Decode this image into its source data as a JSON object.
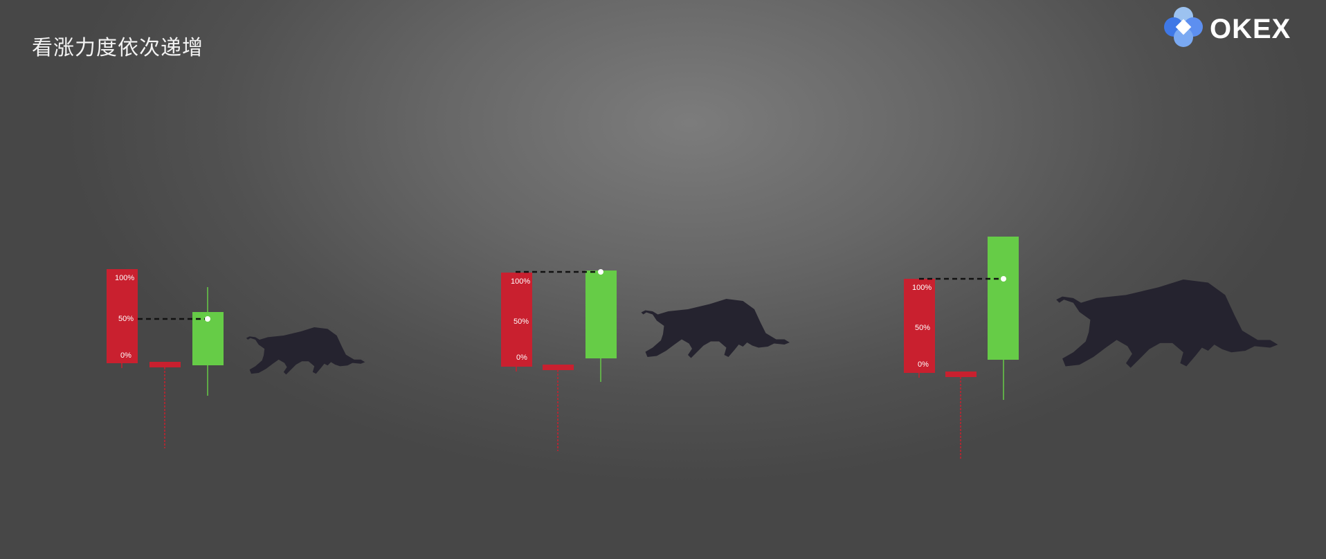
{
  "title": "看涨力度依次递增",
  "logo": {
    "text": "OKEX",
    "icon": "okex-diamond-logo-icon"
  },
  "colors": {
    "bear": "#c9202f",
    "bull": "#66cc47",
    "silhouette": "#25232f",
    "dashed": "#111111",
    "marker": "#ffffff"
  },
  "scale_labels": [
    "100%",
    "50%",
    "0%"
  ],
  "groups": [
    {
      "id": "weak",
      "icon": "bull-silhouette-icon",
      "reach": "50%"
    },
    {
      "id": "medium",
      "icon": "bull-silhouette-icon",
      "reach": "100%"
    },
    {
      "id": "strong",
      "icon": "bull-silhouette-icon",
      "reach": "above 100%"
    }
  ]
}
